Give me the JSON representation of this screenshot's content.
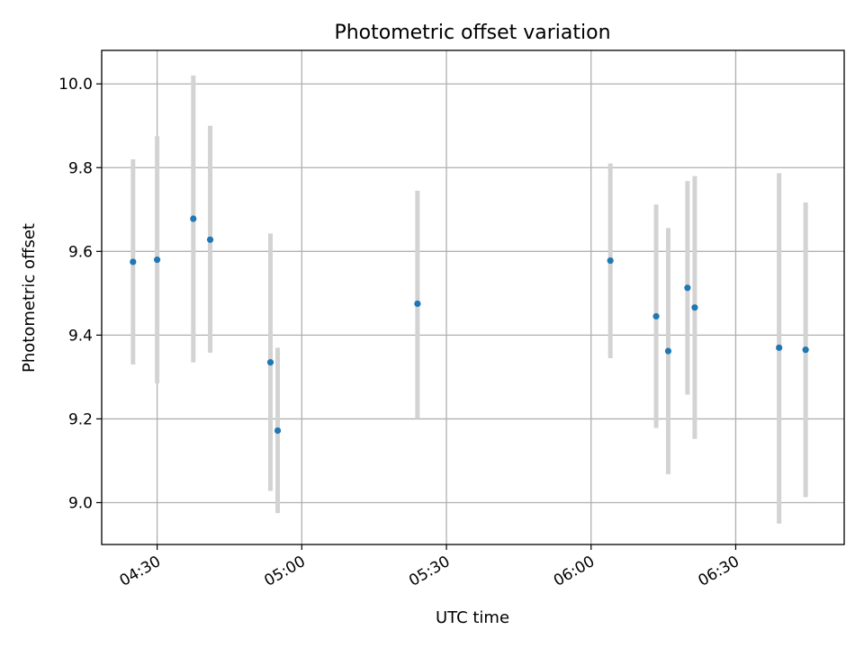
{
  "chart_data": {
    "type": "scatter",
    "title": "Photometric offset variation",
    "xlabel": "UTC time",
    "ylabel": "Photometric offset",
    "x_unit": "UTC time (HH:MM)",
    "x_ticks": [
      "04:30",
      "05:00",
      "05:30",
      "06:00",
      "06:30"
    ],
    "y_ticks": [
      "9.0",
      "9.2",
      "9.4",
      "9.6",
      "9.8",
      "10.0"
    ],
    "xlim": [
      "04:18.5",
      "06:52.5"
    ],
    "ylim": [
      8.9,
      10.08
    ],
    "grid": true,
    "colors": {
      "points": "#1f77b4",
      "error_bars": "#d3d3d3",
      "grid": "#b0b0b0"
    },
    "series": [
      {
        "points": [
          {
            "x": "04:25",
            "y": 9.575,
            "ymin": 9.33,
            "ymax": 9.82
          },
          {
            "x": "04:30",
            "y": 9.58,
            "ymin": 9.285,
            "ymax": 9.875
          },
          {
            "x": "04:37.5",
            "y": 9.678,
            "ymin": 9.335,
            "ymax": 10.02
          },
          {
            "x": "04:41",
            "y": 9.628,
            "ymin": 9.358,
            "ymax": 9.9
          },
          {
            "x": "04:53.5",
            "y": 9.335,
            "ymin": 9.028,
            "ymax": 9.643
          },
          {
            "x": "04:55",
            "y": 9.172,
            "ymin": 8.975,
            "ymax": 9.37
          },
          {
            "x": "05:24",
            "y": 9.475,
            "ymin": 9.2,
            "ymax": 9.745
          },
          {
            "x": "06:04",
            "y": 9.578,
            "ymin": 9.345,
            "ymax": 9.81
          },
          {
            "x": "06:13.5",
            "y": 9.445,
            "ymin": 9.178,
            "ymax": 9.712
          },
          {
            "x": "06:16",
            "y": 9.362,
            "ymin": 9.068,
            "ymax": 9.656
          },
          {
            "x": "06:20",
            "y": 9.513,
            "ymin": 9.258,
            "ymax": 9.768
          },
          {
            "x": "06:21.5",
            "y": 9.466,
            "ymin": 9.152,
            "ymax": 9.78
          },
          {
            "x": "06:39",
            "y": 9.37,
            "ymin": 8.95,
            "ymax": 9.787
          },
          {
            "x": "06:44.5",
            "y": 9.365,
            "ymin": 9.013,
            "ymax": 9.717
          }
        ]
      }
    ]
  }
}
